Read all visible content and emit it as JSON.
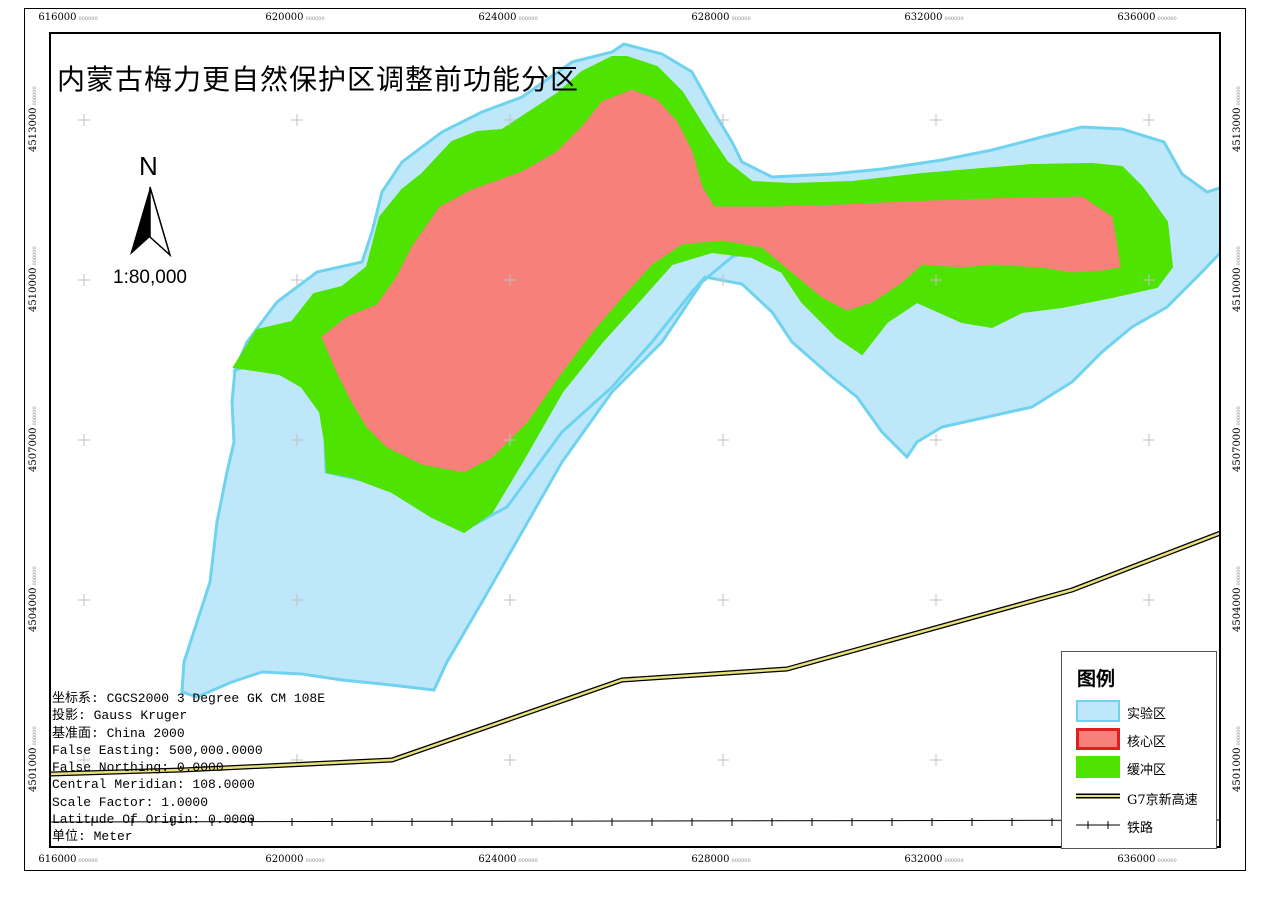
{
  "title": "内蒙古梅力更自然保护区调整前功能分区",
  "north_arrow": {
    "label": "N",
    "icon": "north-arrow-icon"
  },
  "scale": "1:80,000",
  "grid": {
    "x_ticks": [
      "616000",
      "620000",
      "624000",
      "628000",
      "632000",
      "636000"
    ],
    "y_ticks": [
      "4513000",
      "4510000",
      "4507000",
      "4504000",
      "4501000"
    ],
    "tick_suffix": "000000"
  },
  "metadata_lines": [
    "坐标系: CGCS2000 3 Degree GK CM 108E",
    "投影: Gauss Kruger",
    "基准面: China 2000",
    "False Easting: 500,000.0000",
    "False Northing: 0.0000",
    "Central Meridian: 108.0000",
    "Scale Factor: 1.0000",
    "Latitude Of Origin: 0.0000",
    "单位: Meter"
  ],
  "legend": {
    "title": "图例",
    "items": [
      {
        "label": "实验区",
        "fill": "#bee8fa",
        "stroke": "#6fd3ef"
      },
      {
        "label": "核心区",
        "fill": "#f7807a",
        "stroke": "#e02020"
      },
      {
        "label": "缓冲区",
        "fill": "#4ee300",
        "stroke": "#4ee300"
      },
      {
        "label": "G7京新高速",
        "fill": "#e8e07a",
        "stroke": "#000000"
      },
      {
        "label": "铁路",
        "fill": "#ffffff",
        "stroke": "#000000"
      }
    ]
  },
  "colors": {
    "experimental_zone": "#bee8fa",
    "experimental_border": "#6fd3ef",
    "buffer_zone": "#4ee300",
    "core_zone": "#f7807a",
    "highway": "#d8cf66",
    "grid_cross": "#c0c0c0"
  }
}
